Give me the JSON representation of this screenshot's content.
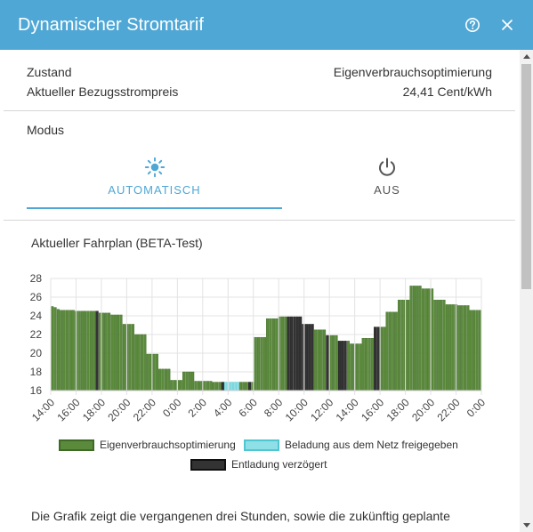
{
  "dialog": {
    "title": "Dynamischer Stromtarif",
    "help_icon": "help-circle-icon",
    "close_icon": "close-icon"
  },
  "info": {
    "state_label": "Zustand",
    "state_value": "Eigenverbrauchsoptimierung",
    "price_label": "Aktueller Bezugsstrompreis",
    "price_value": "24,41 Cent/kWh"
  },
  "mode": {
    "label": "Modus",
    "tabs": [
      {
        "label": "AUTOMATISCH",
        "icon": "sun-icon",
        "selected": true
      },
      {
        "label": "AUS",
        "icon": "power-icon",
        "selected": false
      }
    ]
  },
  "plan": {
    "title": "Aktueller Fahrplan (BETA-Test)",
    "description": "Die Grafik zeigt die vergangenen drei Stunden, sowie die zukünftig geplante"
  },
  "colors": {
    "accent": "#4fa7d5",
    "self_consumption": "#5b8a3c",
    "self_consumption_border": "#3d6b25",
    "grid_charging": "#8fdfe6",
    "grid_charging_border": "#4fc6d0",
    "discharge_delayed": "#333333",
    "discharge_delayed_border": "#111111"
  },
  "chart_data": {
    "type": "bar",
    "ylim": [
      16,
      28
    ],
    "yticks": [
      "16",
      "18",
      "20",
      "22",
      "24",
      "26",
      "28"
    ],
    "xticks": [
      "14:00",
      "16:00",
      "18:00",
      "20:00",
      "22:00",
      "0:00",
      "2:00",
      "4:00",
      "6:00",
      "8:00",
      "10:00",
      "12:00",
      "14:00",
      "16:00",
      "18:00",
      "20:00",
      "22:00",
      "0:00"
    ],
    "x_start": "14:00",
    "interval_minutes": 15,
    "legend": [
      {
        "name": "Eigenverbrauchsoptimierung",
        "mode": "self"
      },
      {
        "name": "Beladung aus dem Netz freigegeben",
        "mode": "grid"
      },
      {
        "name": "Entladung verzögert",
        "mode": "delay"
      }
    ],
    "hourly": [
      {
        "values": [
          25.0,
          24.9,
          24.7,
          24.6
        ],
        "modes": [
          "self",
          "self",
          "self",
          "self"
        ]
      },
      {
        "values": [
          24.6,
          24.6,
          24.6,
          24.6
        ],
        "modes": [
          "self",
          "self",
          "self",
          "self"
        ]
      },
      {
        "values": [
          24.5,
          24.5,
          24.5,
          24.5
        ],
        "modes": [
          "self",
          "self",
          "self",
          "self"
        ]
      },
      {
        "values": [
          24.5,
          24.5,
          24.5,
          24.5
        ],
        "modes": [
          "self",
          "self",
          "self",
          "delay"
        ]
      },
      {
        "values": [
          24.3,
          24.3,
          24.3,
          24.3
        ],
        "modes": [
          "self",
          "self",
          "self",
          "self"
        ]
      },
      {
        "values": [
          24.1,
          24.1,
          24.1,
          24.1
        ],
        "modes": [
          "self",
          "self",
          "self",
          "self"
        ]
      },
      {
        "values": [
          23.1,
          23.1,
          23.1,
          23.1
        ],
        "modes": [
          "self",
          "self",
          "self",
          "self"
        ]
      },
      {
        "values": [
          22.0,
          22.0,
          22.0,
          22.0
        ],
        "modes": [
          "self",
          "self",
          "self",
          "self"
        ]
      },
      {
        "values": [
          19.9,
          19.9,
          19.9,
          19.9
        ],
        "modes": [
          "self",
          "self",
          "self",
          "self"
        ]
      },
      {
        "values": [
          18.3,
          18.3,
          18.3,
          18.3
        ],
        "modes": [
          "self",
          "self",
          "self",
          "self"
        ]
      },
      {
        "values": [
          17.1,
          17.1,
          17.1,
          17.1
        ],
        "modes": [
          "self",
          "self",
          "self",
          "self"
        ]
      },
      {
        "values": [
          18.0,
          18.0,
          18.0,
          18.0
        ],
        "modes": [
          "self",
          "self",
          "self",
          "self"
        ]
      },
      {
        "values": [
          17.0,
          17.0,
          17.0,
          17.0
        ],
        "modes": [
          "self",
          "self",
          "self",
          "self"
        ]
      },
      {
        "values": [
          17.0,
          17.0,
          16.9,
          16.9
        ],
        "modes": [
          "self",
          "self",
          "self",
          "self"
        ]
      },
      {
        "values": [
          16.9,
          16.9,
          16.9,
          16.9
        ],
        "modes": [
          "self",
          "delay",
          "grid",
          "grid"
        ]
      },
      {
        "values": [
          16.9,
          16.9,
          16.9,
          16.9
        ],
        "modes": [
          "grid",
          "grid",
          "grid",
          "self"
        ]
      },
      {
        "values": [
          16.9,
          16.9,
          16.9,
          16.9
        ],
        "modes": [
          "self",
          "self",
          "delay",
          "self"
        ]
      },
      {
        "values": [
          21.7,
          21.7,
          21.7,
          21.7
        ],
        "modes": [
          "self",
          "self",
          "self",
          "self"
        ]
      },
      {
        "values": [
          23.7,
          23.7,
          23.7,
          23.7
        ],
        "modes": [
          "self",
          "self",
          "self",
          "self"
        ]
      },
      {
        "values": [
          23.9,
          23.9,
          23.9,
          23.9
        ],
        "modes": [
          "self",
          "self",
          "self",
          "delay"
        ]
      },
      {
        "values": [
          23.9,
          23.9,
          23.9,
          23.9
        ],
        "modes": [
          "delay",
          "delay",
          "delay",
          "delay"
        ]
      },
      {
        "values": [
          23.1,
          23.1,
          23.1,
          23.1
        ],
        "modes": [
          "delay",
          "delay",
          "delay",
          "delay"
        ]
      },
      {
        "values": [
          22.5,
          22.5,
          22.5,
          22.5
        ],
        "modes": [
          "self",
          "self",
          "self",
          "self"
        ]
      },
      {
        "values": [
          21.9,
          21.9,
          21.9,
          21.9
        ],
        "modes": [
          "delay",
          "self",
          "self",
          "self"
        ]
      },
      {
        "values": [
          21.3,
          21.3,
          21.3,
          21.3
        ],
        "modes": [
          "delay",
          "delay",
          "delay",
          "self"
        ]
      },
      {
        "values": [
          21.0,
          21.0,
          21.0,
          21.0
        ],
        "modes": [
          "self",
          "self",
          "self",
          "self"
        ]
      },
      {
        "values": [
          21.6,
          21.6,
          21.6,
          21.6
        ],
        "modes": [
          "self",
          "self",
          "self",
          "self"
        ]
      },
      {
        "values": [
          22.8,
          22.8,
          22.8,
          22.8
        ],
        "modes": [
          "delay",
          "delay",
          "self",
          "self"
        ]
      },
      {
        "values": [
          24.4,
          24.4,
          24.4,
          24.4
        ],
        "modes": [
          "self",
          "self",
          "self",
          "self"
        ]
      },
      {
        "values": [
          25.7,
          25.7,
          25.7,
          25.7
        ],
        "modes": [
          "self",
          "self",
          "self",
          "self"
        ]
      },
      {
        "values": [
          27.2,
          27.2,
          27.2,
          27.2
        ],
        "modes": [
          "self",
          "self",
          "self",
          "self"
        ]
      },
      {
        "values": [
          26.9,
          26.9,
          26.9,
          26.9
        ],
        "modes": [
          "self",
          "self",
          "self",
          "self"
        ]
      },
      {
        "values": [
          25.7,
          25.7,
          25.7,
          25.7
        ],
        "modes": [
          "self",
          "self",
          "self",
          "self"
        ]
      },
      {
        "values": [
          25.2,
          25.2,
          25.2,
          25.2
        ],
        "modes": [
          "self",
          "self",
          "self",
          "self"
        ]
      },
      {
        "values": [
          25.1,
          25.1,
          25.1,
          25.1
        ],
        "modes": [
          "self",
          "self",
          "self",
          "self"
        ]
      },
      {
        "values": [
          24.6,
          24.6,
          24.6,
          24.6
        ],
        "modes": [
          "self",
          "self",
          "self",
          "self"
        ]
      }
    ]
  }
}
